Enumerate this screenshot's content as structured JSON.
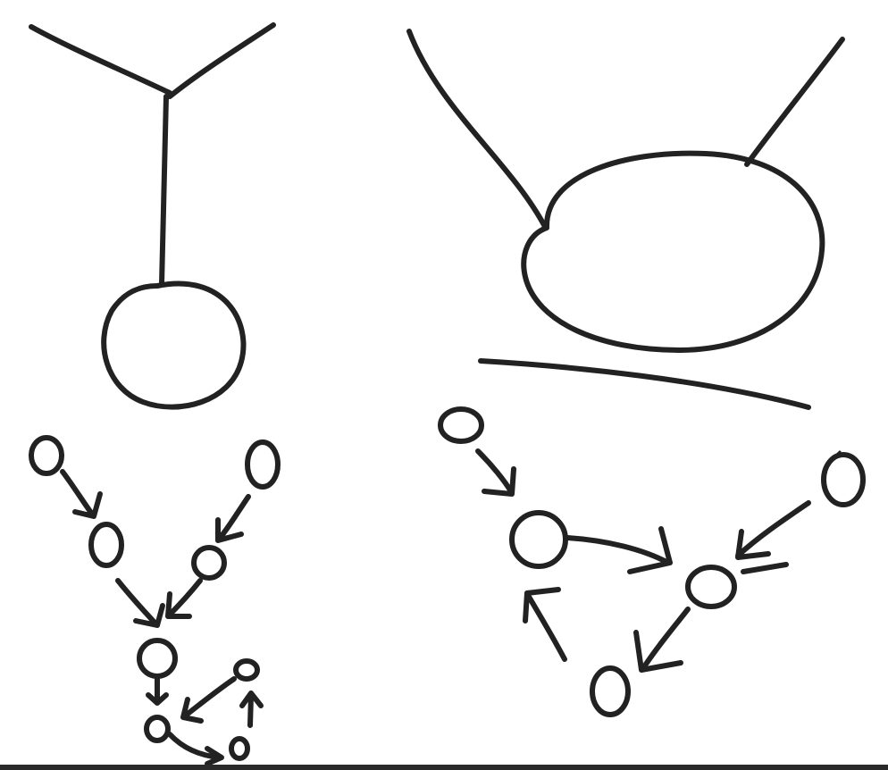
{
  "diagram": {
    "colors": {
      "ink": "#222222",
      "background": "#ffffff",
      "frame": "#2a2a2a"
    },
    "panels": [
      {
        "name": "left-y-branch-with-circle"
      },
      {
        "name": "right-branch-with-ellipse"
      },
      {
        "name": "left-directed-graph"
      },
      {
        "name": "right-directed-graph"
      }
    ]
  }
}
